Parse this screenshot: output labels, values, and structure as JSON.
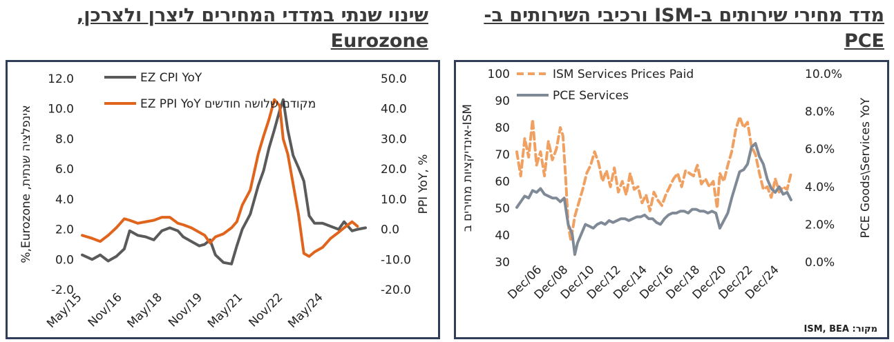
{
  "titles": {
    "left": "שינוי שנתי במדדי המחירים ליצרן ולצרכן, Eurozone",
    "right": "מדד מחירי שירותים ב-ISM ורכיבי השירותים ב-PCE"
  },
  "source": "מקור: ISM, BEA",
  "colors": {
    "cpi": "#5a5a5a",
    "ppi": "#e0641c",
    "ism": "#f0a060",
    "pce": "#7f8a96",
    "frame": "#2f3c5a"
  },
  "chart_data": [
    {
      "type": "line",
      "ylabel": "%,Eurozone ,אינפלציה שנתית",
      "y2label": "PPI YoY, %",
      "ylim": [
        -2.0,
        12.0
      ],
      "y2lim": [
        -20.0,
        50.0
      ],
      "yticks": [
        "12.0",
        "10.0",
        "8.0",
        "6.0",
        "4.0",
        "2.0",
        "0.0",
        "-2.0"
      ],
      "y2ticks": [
        "50.0",
        "40.0",
        "30.0",
        "20.0",
        "10.0",
        "0.0",
        "-10.0",
        "-20.0"
      ],
      "xlim": [
        2015.33,
        2025.9
      ],
      "xticks": [
        {
          "label": "May/15",
          "x": 2015.33
        },
        {
          "label": "Nov/16",
          "x": 2016.83
        },
        {
          "label": "May/18",
          "x": 2018.33
        },
        {
          "label": "Nov/19",
          "x": 2019.83
        },
        {
          "label": "May/21",
          "x": 2021.33
        },
        {
          "label": "Nov/22",
          "x": 2022.83
        },
        {
          "label": "May/24",
          "x": 2024.33
        }
      ],
      "legend_position": "top-left",
      "series": [
        {
          "name": "EZ CPI YoY",
          "axis": "left",
          "x": [
            2015.33,
            2015.7,
            2016.0,
            2016.3,
            2016.6,
            2016.9,
            2017.1,
            2017.4,
            2017.7,
            2018.0,
            2018.3,
            2018.6,
            2018.9,
            2019.1,
            2019.4,
            2019.7,
            2019.9,
            2020.1,
            2020.3,
            2020.6,
            2020.9,
            2021.1,
            2021.3,
            2021.6,
            2021.9,
            2022.1,
            2022.3,
            2022.5,
            2022.7,
            2022.83,
            2023.0,
            2023.2,
            2023.4,
            2023.6,
            2023.8,
            2024.0,
            2024.3,
            2024.6,
            2024.9,
            2025.1,
            2025.4,
            2025.6,
            2025.9
          ],
          "y": [
            0.3,
            0.0,
            0.3,
            -0.1,
            0.2,
            0.7,
            1.9,
            1.6,
            1.5,
            1.3,
            1.9,
            2.1,
            1.9,
            1.5,
            1.2,
            0.9,
            1.0,
            1.3,
            0.3,
            -0.2,
            -0.3,
            0.9,
            2.0,
            3.0,
            4.9,
            5.9,
            7.4,
            8.6,
            9.9,
            10.6,
            8.6,
            6.9,
            6.1,
            5.2,
            2.9,
            2.4,
            2.4,
            2.2,
            2.0,
            2.5,
            1.9,
            2.0,
            2.1
          ]
        },
        {
          "name": "EZ PPI YoY מקודם שלושה חודשים",
          "axis": "right",
          "x": [
            2015.33,
            2015.7,
            2016.0,
            2016.3,
            2016.6,
            2016.9,
            2017.1,
            2017.4,
            2017.7,
            2018.0,
            2018.3,
            2018.6,
            2018.9,
            2019.1,
            2019.4,
            2019.7,
            2019.9,
            2020.1,
            2020.3,
            2020.6,
            2020.9,
            2021.1,
            2021.3,
            2021.6,
            2021.9,
            2022.1,
            2022.3,
            2022.5,
            2022.7,
            2022.83,
            2023.0,
            2023.2,
            2023.4,
            2023.6,
            2023.8,
            2024.0,
            2024.3,
            2024.6,
            2024.9,
            2025.1,
            2025.4,
            2025.6
          ],
          "y": [
            -2.0,
            -3.0,
            -4.0,
            -2.0,
            0.5,
            3.5,
            3.0,
            2.0,
            2.5,
            3.0,
            4.0,
            4.0,
            2.0,
            1.5,
            0.5,
            -1.0,
            -2.0,
            -4.5,
            -2.5,
            -1.5,
            0.5,
            2.5,
            8.0,
            13.0,
            25.0,
            31.0,
            36.5,
            43.0,
            41.0,
            30.0,
            25.0,
            15.0,
            5.0,
            -8.0,
            -9.0,
            -7.5,
            -6.0,
            -3.0,
            -1.0,
            0.5,
            2.5,
            1.0
          ]
        }
      ]
    },
    {
      "type": "line",
      "ylabel": "אינדיקציות מחירים ב-ISM",
      "y2label": "PCE Goods\\Services YoY",
      "ylim": [
        30,
        100
      ],
      "y2lim": [
        0.0,
        10.0
      ],
      "yticks": [
        "100",
        "90",
        "80",
        "70",
        "60",
        "50",
        "40",
        "30"
      ],
      "y2ticks": [
        "10.0%",
        "8.0%",
        "6.0%",
        "4.0%",
        "2.0%",
        "0.0%"
      ],
      "xlim": [
        2005.0,
        2025.8
      ],
      "xticks": [
        {
          "label": "Dec/06",
          "x": 2006.92
        },
        {
          "label": "Dec/08",
          "x": 2008.92
        },
        {
          "label": "Dec/10",
          "x": 2010.92
        },
        {
          "label": "Dec/12",
          "x": 2012.92
        },
        {
          "label": "Dec/14",
          "x": 2014.92
        },
        {
          "label": "Dec/16",
          "x": 2016.92
        },
        {
          "label": "Dec/18",
          "x": 2018.92
        },
        {
          "label": "Dec/20",
          "x": 2020.92
        },
        {
          "label": "Dec/22",
          "x": 2022.92
        },
        {
          "label": "Dec/24",
          "x": 2024.92
        }
      ],
      "legend_position": "top-left",
      "series": [
        {
          "name": "ISM Services Prices Paid",
          "axis": "left",
          "style": "dashed",
          "x": [
            2005.0,
            2005.3,
            2005.6,
            2005.9,
            2006.2,
            2006.5,
            2006.8,
            2007.1,
            2007.4,
            2007.7,
            2008.0,
            2008.3,
            2008.5,
            2008.7,
            2008.9,
            2009.1,
            2009.4,
            2009.7,
            2010.0,
            2010.3,
            2010.6,
            2010.9,
            2011.2,
            2011.5,
            2011.8,
            2012.1,
            2012.4,
            2012.7,
            2013.0,
            2013.3,
            2013.6,
            2013.9,
            2014.2,
            2014.5,
            2014.8,
            2015.1,
            2015.4,
            2015.7,
            2016.0,
            2016.3,
            2016.6,
            2016.9,
            2017.2,
            2017.5,
            2017.8,
            2018.1,
            2018.4,
            2018.7,
            2019.0,
            2019.3,
            2019.6,
            2019.9,
            2020.2,
            2020.4,
            2020.7,
            2021.0,
            2021.3,
            2021.6,
            2021.9,
            2022.2,
            2022.5,
            2022.8,
            2023.1,
            2023.4,
            2023.7,
            2024.0,
            2024.3,
            2024.6,
            2024.9,
            2025.2,
            2025.5,
            2025.8
          ],
          "y": [
            71,
            62,
            76,
            69,
            83,
            66,
            71,
            62,
            75,
            68,
            72,
            80,
            77,
            62,
            44,
            38,
            47,
            52,
            57,
            63,
            66,
            71,
            67,
            60,
            64,
            58,
            65,
            56,
            60,
            55,
            63,
            57,
            58,
            52,
            55,
            49,
            56,
            53,
            51,
            55,
            58,
            61,
            63,
            58,
            64,
            63,
            62,
            66,
            59,
            61,
            58,
            60,
            50,
            63,
            60,
            66,
            71,
            79,
            84,
            80,
            82,
            73,
            70,
            63,
            57,
            58,
            54,
            61,
            56,
            58,
            57,
            63
          ]
        },
        {
          "name": "PCE Services",
          "axis": "right",
          "x": [
            2005.0,
            2005.3,
            2005.6,
            2005.9,
            2006.2,
            2006.5,
            2006.8,
            2007.1,
            2007.4,
            2007.7,
            2008.0,
            2008.3,
            2008.6,
            2008.9,
            2009.2,
            2009.4,
            2009.6,
            2009.9,
            2010.2,
            2010.5,
            2010.8,
            2011.1,
            2011.4,
            2011.7,
            2012.0,
            2012.3,
            2012.6,
            2012.9,
            2013.2,
            2013.5,
            2013.8,
            2014.1,
            2014.4,
            2014.7,
            2015.0,
            2015.3,
            2015.6,
            2015.9,
            2016.2,
            2016.5,
            2016.8,
            2017.1,
            2017.4,
            2017.7,
            2018.0,
            2018.3,
            2018.6,
            2018.9,
            2019.2,
            2019.5,
            2019.8,
            2020.1,
            2020.4,
            2020.7,
            2021.0,
            2021.3,
            2021.6,
            2021.9,
            2022.2,
            2022.5,
            2022.8,
            2023.1,
            2023.4,
            2023.7,
            2024.0,
            2024.3,
            2024.6,
            2024.9,
            2025.2,
            2025.5,
            2025.8
          ],
          "y": [
            2.9,
            3.2,
            3.5,
            3.4,
            3.8,
            3.7,
            3.9,
            3.6,
            3.5,
            3.4,
            3.4,
            3.2,
            3.4,
            2.0,
            1.5,
            0.4,
            1.0,
            1.5,
            2.0,
            1.9,
            1.8,
            2.0,
            2.1,
            2.0,
            2.2,
            2.1,
            2.2,
            2.3,
            2.3,
            2.2,
            2.3,
            2.4,
            2.4,
            2.5,
            2.3,
            2.3,
            2.1,
            2.0,
            2.3,
            2.5,
            2.6,
            2.6,
            2.7,
            2.7,
            2.6,
            2.8,
            2.8,
            2.7,
            2.7,
            2.6,
            2.7,
            2.6,
            1.8,
            2.2,
            2.6,
            3.4,
            4.1,
            4.8,
            4.9,
            5.2,
            6.1,
            6.3,
            5.6,
            5.2,
            4.4,
            3.9,
            3.7,
            4.0,
            3.6,
            3.7,
            3.3
          ]
        }
      ]
    }
  ]
}
